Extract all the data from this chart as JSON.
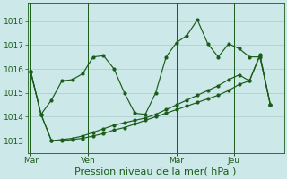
{
  "background_color": "#cce8e8",
  "plot_bg_color": "#cce8e8",
  "grid_color": "#aacccc",
  "line_color": "#1a5c1a",
  "ylim": [
    1012.5,
    1018.75
  ],
  "yticks": [
    1013,
    1014,
    1015,
    1016,
    1017,
    1018
  ],
  "xlabel": "Pression niveau de la mer( hPa )",
  "xlabel_fontsize": 8,
  "day_labels": [
    "Mar",
    "Ven",
    "Mar",
    "Jeu"
  ],
  "tick_fontsize": 6.5,
  "xlim": [
    -0.3,
    24.3
  ],
  "series1_x": [
    0,
    1,
    2,
    3,
    4,
    5,
    6,
    7,
    8,
    9,
    10,
    11,
    12,
    13,
    14,
    15,
    16,
    17,
    18,
    19,
    20,
    21,
    22,
    23
  ],
  "series1_y": [
    1015.9,
    1014.1,
    1014.7,
    1015.5,
    1015.55,
    1015.8,
    1016.5,
    1016.55,
    1016.0,
    1015.0,
    1014.15,
    1014.1,
    1015.0,
    1016.5,
    1017.1,
    1017.4,
    1018.05,
    1017.05,
    1016.5,
    1017.05,
    1016.85,
    1016.5,
    1016.5,
    1014.5
  ],
  "series2_x": [
    0,
    1,
    2,
    3,
    4,
    5,
    6,
    7,
    8,
    9,
    10,
    11,
    12,
    13,
    14,
    15,
    16,
    17,
    18,
    19,
    20,
    21,
    22,
    23
  ],
  "series2_y": [
    1015.9,
    1014.1,
    1013.0,
    1013.05,
    1013.1,
    1013.2,
    1013.35,
    1013.5,
    1013.65,
    1013.75,
    1013.85,
    1013.95,
    1014.1,
    1014.3,
    1014.5,
    1014.7,
    1014.9,
    1015.1,
    1015.3,
    1015.55,
    1015.75,
    1015.5,
    1016.6,
    1014.5
  ],
  "series3_x": [
    0,
    1,
    2,
    3,
    4,
    5,
    6,
    7,
    8,
    9,
    10,
    11,
    12,
    13,
    14,
    15,
    16,
    17,
    18,
    19,
    20,
    21,
    22,
    23
  ],
  "series3_y": [
    1015.9,
    1014.1,
    1013.0,
    1013.0,
    1013.05,
    1013.1,
    1013.2,
    1013.3,
    1013.45,
    1013.55,
    1013.7,
    1013.85,
    1014.0,
    1014.15,
    1014.3,
    1014.45,
    1014.6,
    1014.75,
    1014.9,
    1015.1,
    1015.35,
    1015.5,
    1016.55,
    1014.5
  ],
  "vline_x": [
    0,
    5.5,
    14,
    19.5
  ]
}
